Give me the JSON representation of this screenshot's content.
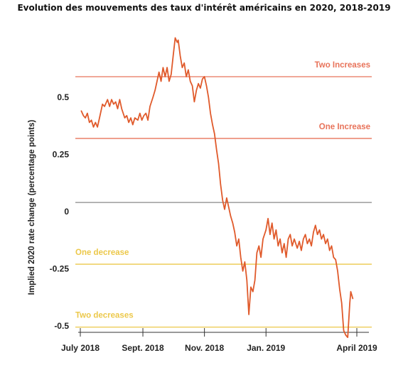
{
  "chart_data": {
    "type": "line",
    "title": "Evolution des mouvements des taux d'intérêt américains en 2020, 2018-2019",
    "xlabel": "",
    "ylabel": "Implied 2020 rate change (percentage points)",
    "ylim": [
      -0.52,
      0.8
    ],
    "yticks": [
      {
        "value": 0.5,
        "label": "0.5"
      },
      {
        "value": 0.25,
        "label": "0.25"
      },
      {
        "value": 0,
        "label": "0"
      },
      {
        "value": -0.25,
        "label": "-0.25"
      },
      {
        "value": -0.5,
        "label": "-0.5"
      }
    ],
    "xticks": [
      {
        "date": "2018-07-01",
        "label": "July 2018"
      },
      {
        "date": "2018-09-01",
        "label": "Sept. 2018"
      },
      {
        "date": "2018-11-01",
        "label": "Nov. 2018"
      },
      {
        "date": "2019-01-01",
        "label": "Jan. 2019"
      },
      {
        "date": "2019-04-01",
        "label": "April 2019"
      }
    ],
    "xlim": [
      "2018-07-01",
      "2019-04-05"
    ],
    "grid": false,
    "reference_lines": [
      {
        "value": 0.59,
        "label": "Two Increases",
        "color": "#e8735a",
        "label_side": "right"
      },
      {
        "value": 0.32,
        "label": "One Increase",
        "color": "#e8735a",
        "label_side": "right"
      },
      {
        "value": 0.04,
        "label": "",
        "color": "#888888",
        "label_side": "none"
      },
      {
        "value": -0.23,
        "label": "One decrease",
        "color": "#ecc84a",
        "label_side": "left"
      },
      {
        "value": -0.505,
        "label": "Two decreases",
        "color": "#ecc84a",
        "label_side": "left"
      }
    ],
    "series": [
      {
        "color": "#e05a2b",
        "points": [
          [
            "2018-07-02",
            0.44
          ],
          [
            "2018-07-04",
            0.42
          ],
          [
            "2018-07-06",
            0.41
          ],
          [
            "2018-07-08",
            0.43
          ],
          [
            "2018-07-10",
            0.39
          ],
          [
            "2018-07-12",
            0.4
          ],
          [
            "2018-07-14",
            0.37
          ],
          [
            "2018-07-16",
            0.39
          ],
          [
            "2018-07-18",
            0.37
          ],
          [
            "2018-07-20",
            0.41
          ],
          [
            "2018-07-23",
            0.47
          ],
          [
            "2018-07-25",
            0.46
          ],
          [
            "2018-07-28",
            0.49
          ],
          [
            "2018-07-30",
            0.46
          ],
          [
            "2018-08-01",
            0.49
          ],
          [
            "2018-08-03",
            0.47
          ],
          [
            "2018-08-05",
            0.48
          ],
          [
            "2018-08-07",
            0.45
          ],
          [
            "2018-08-09",
            0.49
          ],
          [
            "2018-08-11",
            0.45
          ],
          [
            "2018-08-14",
            0.41
          ],
          [
            "2018-08-16",
            0.42
          ],
          [
            "2018-08-18",
            0.39
          ],
          [
            "2018-08-20",
            0.41
          ],
          [
            "2018-08-22",
            0.38
          ],
          [
            "2018-08-24",
            0.41
          ],
          [
            "2018-08-27",
            0.4
          ],
          [
            "2018-08-29",
            0.43
          ],
          [
            "2018-08-31",
            0.4
          ],
          [
            "2018-09-02",
            0.42
          ],
          [
            "2018-09-04",
            0.43
          ],
          [
            "2018-09-06",
            0.4
          ],
          [
            "2018-09-08",
            0.46
          ],
          [
            "2018-09-11",
            0.5
          ],
          [
            "2018-09-13",
            0.53
          ],
          [
            "2018-09-15",
            0.57
          ],
          [
            "2018-09-17",
            0.61
          ],
          [
            "2018-09-19",
            0.57
          ],
          [
            "2018-09-21",
            0.63
          ],
          [
            "2018-09-23",
            0.59
          ],
          [
            "2018-09-25",
            0.63
          ],
          [
            "2018-09-27",
            0.57
          ],
          [
            "2018-09-29",
            0.6
          ],
          [
            "2018-10-01",
            0.68
          ],
          [
            "2018-10-03",
            0.76
          ],
          [
            "2018-10-05",
            0.74
          ],
          [
            "2018-10-06",
            0.75
          ],
          [
            "2018-10-08",
            0.68
          ],
          [
            "2018-10-10",
            0.63
          ],
          [
            "2018-10-12",
            0.65
          ],
          [
            "2018-10-14",
            0.59
          ],
          [
            "2018-10-16",
            0.62
          ],
          [
            "2018-10-18",
            0.57
          ],
          [
            "2018-10-20",
            0.55
          ],
          [
            "2018-10-22",
            0.48
          ],
          [
            "2018-10-24",
            0.53
          ],
          [
            "2018-10-26",
            0.56
          ],
          [
            "2018-10-28",
            0.54
          ],
          [
            "2018-10-30",
            0.58
          ],
          [
            "2018-11-01",
            0.59
          ],
          [
            "2018-11-03",
            0.55
          ],
          [
            "2018-11-05",
            0.5
          ],
          [
            "2018-11-07",
            0.43
          ],
          [
            "2018-11-09",
            0.38
          ],
          [
            "2018-11-11",
            0.34
          ],
          [
            "2018-11-13",
            0.27
          ],
          [
            "2018-11-15",
            0.21
          ],
          [
            "2018-11-17",
            0.12
          ],
          [
            "2018-11-19",
            0.05
          ],
          [
            "2018-11-21",
            0.01
          ],
          [
            "2018-11-23",
            0.06
          ],
          [
            "2018-11-25",
            0.02
          ],
          [
            "2018-11-27",
            -0.02
          ],
          [
            "2018-11-29",
            -0.05
          ],
          [
            "2018-12-01",
            -0.09
          ],
          [
            "2018-12-03",
            -0.15
          ],
          [
            "2018-12-05",
            -0.12
          ],
          [
            "2018-12-07",
            -0.2
          ],
          [
            "2018-12-09",
            -0.26
          ],
          [
            "2018-12-11",
            -0.22
          ],
          [
            "2018-12-13",
            -0.3
          ],
          [
            "2018-12-15",
            -0.45
          ],
          [
            "2018-12-17",
            -0.33
          ],
          [
            "2018-12-19",
            -0.35
          ],
          [
            "2018-12-21",
            -0.3
          ],
          [
            "2018-12-23",
            -0.18
          ],
          [
            "2018-12-25",
            -0.15
          ],
          [
            "2018-12-27",
            -0.2
          ],
          [
            "2018-12-29",
            -0.12
          ],
          [
            "2019-01-01",
            -0.08
          ],
          [
            "2019-01-03",
            -0.03
          ],
          [
            "2019-01-05",
            -0.1
          ],
          [
            "2019-01-07",
            -0.05
          ],
          [
            "2019-01-09",
            -0.12
          ],
          [
            "2019-01-11",
            -0.08
          ],
          [
            "2019-01-13",
            -0.15
          ],
          [
            "2019-01-15",
            -0.12
          ],
          [
            "2019-01-17",
            -0.18
          ],
          [
            "2019-01-19",
            -0.14
          ],
          [
            "2019-01-21",
            -0.2
          ],
          [
            "2019-01-23",
            -0.12
          ],
          [
            "2019-01-25",
            -0.1
          ],
          [
            "2019-01-27",
            -0.15
          ],
          [
            "2019-01-29",
            -0.12
          ],
          [
            "2019-02-01",
            -0.16
          ],
          [
            "2019-02-03",
            -0.13
          ],
          [
            "2019-02-05",
            -0.17
          ],
          [
            "2019-02-07",
            -0.12
          ],
          [
            "2019-02-09",
            -0.1
          ],
          [
            "2019-02-11",
            -0.14
          ],
          [
            "2019-02-13",
            -0.12
          ],
          [
            "2019-02-15",
            -0.15
          ],
          [
            "2019-02-17",
            -0.09
          ],
          [
            "2019-02-19",
            -0.06
          ],
          [
            "2019-02-21",
            -0.1
          ],
          [
            "2019-02-23",
            -0.08
          ],
          [
            "2019-02-25",
            -0.12
          ],
          [
            "2019-02-27",
            -0.1
          ],
          [
            "2019-03-01",
            -0.14
          ],
          [
            "2019-03-03",
            -0.12
          ],
          [
            "2019-03-05",
            -0.17
          ],
          [
            "2019-03-07",
            -0.15
          ],
          [
            "2019-03-09",
            -0.2
          ],
          [
            "2019-03-11",
            -0.21
          ],
          [
            "2019-03-13",
            -0.26
          ],
          [
            "2019-03-15",
            -0.34
          ],
          [
            "2019-03-17",
            -0.4
          ],
          [
            "2019-03-19",
            -0.52
          ],
          [
            "2019-03-21",
            -0.54
          ],
          [
            "2019-03-23",
            -0.55
          ],
          [
            "2019-03-25",
            -0.4
          ],
          [
            "2019-03-26",
            -0.35
          ],
          [
            "2019-03-28",
            -0.38
          ]
        ]
      }
    ]
  }
}
